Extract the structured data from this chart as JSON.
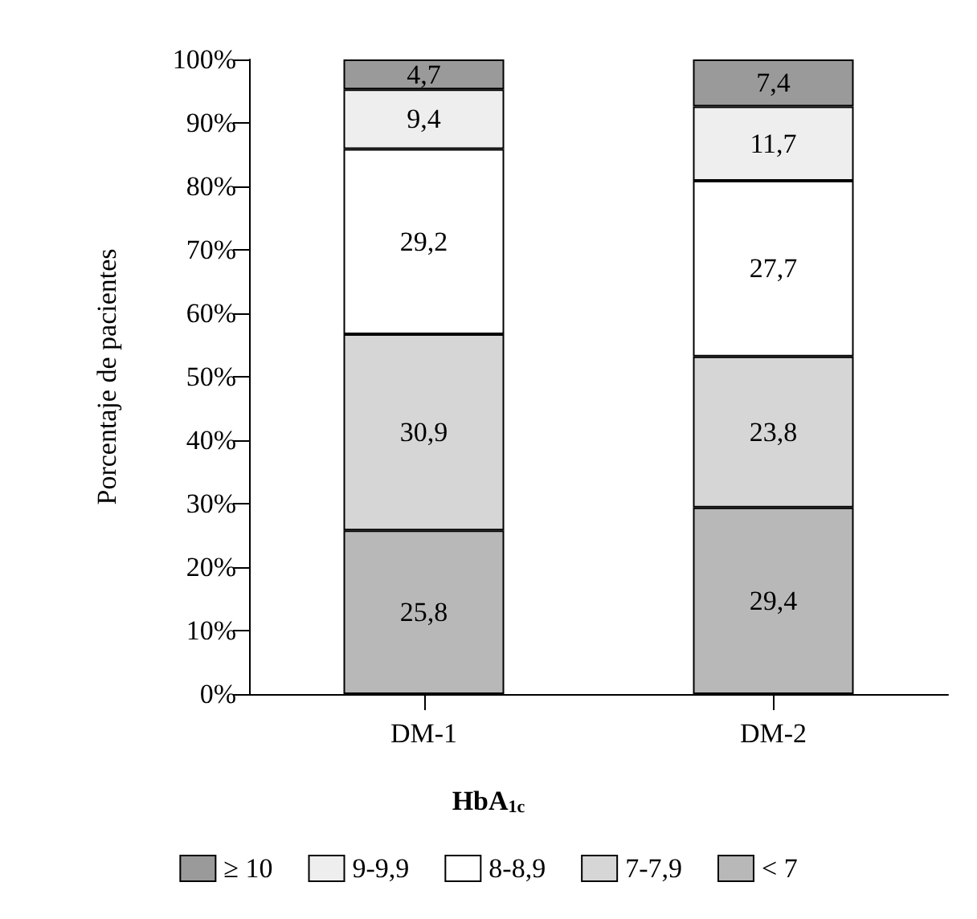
{
  "chart_data": {
    "type": "bar",
    "stacked": true,
    "ylabel": "Porcentaje de pacientes",
    "legend_title": "HbA$_{1c}$",
    "categories": [
      "DM-1",
      "DM-2"
    ],
    "series": [
      {
        "name": "< 7",
        "color": "#b8b8b8",
        "values": [
          25.8,
          29.4
        ],
        "value_labels": [
          "25,8",
          "29,4"
        ]
      },
      {
        "name": "7-7,9",
        "color": "#d6d6d6",
        "values": [
          30.9,
          23.8
        ],
        "value_labels": [
          "30,9",
          "23,8"
        ]
      },
      {
        "name": "8-8,9",
        "color": "#ffffff",
        "values": [
          29.2,
          27.7
        ],
        "value_labels": [
          "29,2",
          "27,7"
        ]
      },
      {
        "name": "9-9,9",
        "color": "#eeeeee",
        "values": [
          9.4,
          11.7
        ],
        "value_labels": [
          "9,4",
          "11,7"
        ]
      },
      {
        "name": "≥ 10",
        "color": "#9a9a9a",
        "values": [
          4.7,
          7.4
        ],
        "value_labels": [
          "4,7",
          "7,4"
        ]
      }
    ],
    "ylim": [
      0,
      100
    ],
    "yticks": [
      {
        "value": 0,
        "label": "0%"
      },
      {
        "value": 10,
        "label": "10%"
      },
      {
        "value": 20,
        "label": "20%"
      },
      {
        "value": 30,
        "label": "30%"
      },
      {
        "value": 40,
        "label": "40%"
      },
      {
        "value": 50,
        "label": "50%"
      },
      {
        "value": 60,
        "label": "60%"
      },
      {
        "value": 70,
        "label": "70%"
      },
      {
        "value": 80,
        "label": "80%"
      },
      {
        "value": 90,
        "label": "90%"
      },
      {
        "value": 100,
        "label": "100%"
      }
    ],
    "grid": false,
    "legend": "bottom"
  }
}
